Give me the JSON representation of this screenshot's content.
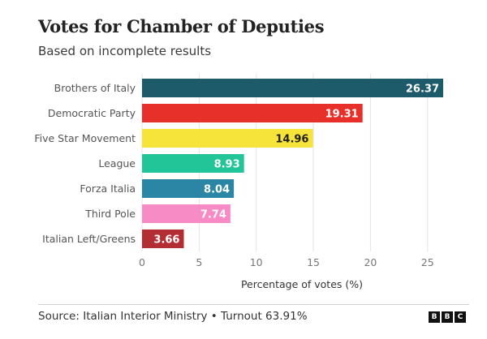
{
  "chart_data": {
    "type": "bar",
    "orientation": "horizontal",
    "title": "Votes for Chamber of Deputies",
    "subtitle": "Based on incomplete results",
    "categories": [
      "Brothers of Italy",
      "Democratic Party",
      "Five Star Movement",
      "League",
      "Forza Italia",
      "Third Pole",
      "Italian Left/Greens"
    ],
    "values": [
      26.37,
      19.31,
      14.96,
      8.93,
      8.04,
      7.74,
      3.66
    ],
    "value_labels": [
      "26.37",
      "19.31",
      "14.96",
      "8.93",
      "8.04",
      "7.74",
      "3.66"
    ],
    "colors": [
      "#1d5b6b",
      "#e8302b",
      "#f6e43b",
      "#22c597",
      "#2b86a6",
      "#f78bc6",
      "#b22e32"
    ],
    "label_colors": [
      "#ffffff",
      "#ffffff",
      "#222222",
      "#ffffff",
      "#ffffff",
      "#ffffff",
      "#ffffff"
    ],
    "xlabel": "Percentage of votes (%)",
    "ylabel": "",
    "xlim": [
      0,
      27
    ],
    "xticks": [
      0,
      5,
      10,
      15,
      20,
      25
    ],
    "xtick_labels": [
      "0",
      "5",
      "10",
      "15",
      "20",
      "25"
    ],
    "grid": true
  },
  "footer": {
    "source": "Source: Italian Interior Ministry • Turnout 63.91%",
    "logo_letters": [
      "B",
      "B",
      "C"
    ]
  }
}
